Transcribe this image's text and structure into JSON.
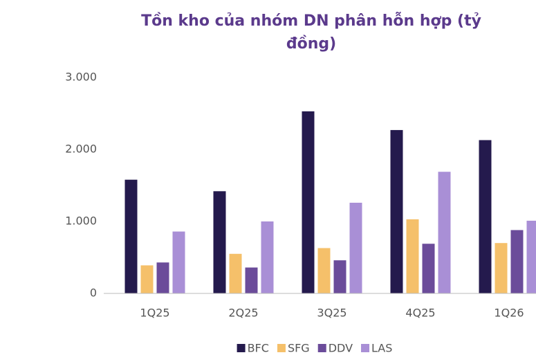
{
  "chart_data": {
    "type": "bar",
    "title": "Tồn kho của nhóm DN phân hỗn hợp (tỷ đồng)",
    "categories": [
      "1Q25",
      "2Q25",
      "3Q25",
      "4Q25",
      "1Q26"
    ],
    "series": [
      {
        "name": "BFC",
        "color": "#241a4d",
        "values": [
          1580,
          1420,
          2530,
          2270,
          2130
        ]
      },
      {
        "name": "SFG",
        "color": "#f5c06a",
        "values": [
          390,
          550,
          630,
          1030,
          700
        ]
      },
      {
        "name": "DDV",
        "color": "#6b4c9a",
        "values": [
          430,
          360,
          460,
          690,
          880
        ]
      },
      {
        "name": "LAS",
        "color": "#a98fd6",
        "values": [
          860,
          1000,
          1260,
          1690,
          1010
        ]
      }
    ],
    "ylim": [
      0,
      3000
    ],
    "yticks": [
      0,
      {
        "value": 1000,
        "label": "1.000"
      },
      {
        "value": 2000,
        "label": "2.000"
      },
      {
        "value": 3000,
        "label": "3.000"
      }
    ],
    "grid": false,
    "legend": "bottom"
  }
}
